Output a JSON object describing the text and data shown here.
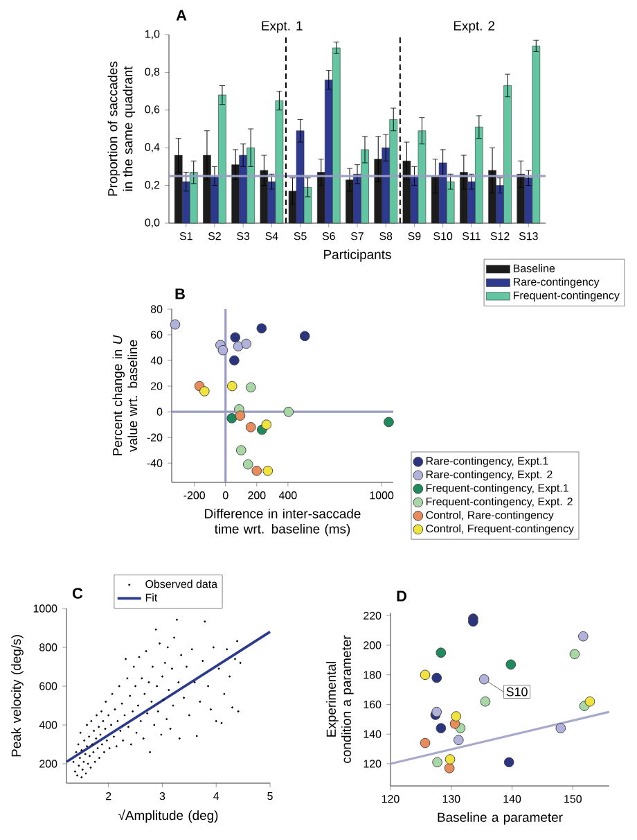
{
  "chart_data": [
    {
      "type": "bar",
      "title": "A",
      "xlabel": "Participants",
      "ylabel": "Proportion of saccades in the same quadrant",
      "categories": [
        "S1",
        "S2",
        "S3",
        "S4",
        "S5",
        "S6",
        "S7",
        "S8",
        "S9",
        "S10",
        "S11",
        "S12",
        "S13"
      ],
      "series": [
        {
          "name": "Baseline",
          "color": "#1c1c1c",
          "values": [
            0.36,
            0.36,
            0.31,
            0.28,
            0.17,
            0.27,
            0.23,
            0.34,
            0.33,
            0.25,
            0.27,
            0.28,
            0.26
          ],
          "errors": [
            0.09,
            0.13,
            0.08,
            0.08,
            0.07,
            0.07,
            0.06,
            0.12,
            0.1,
            0.09,
            0.09,
            0.12,
            0.07
          ]
        },
        {
          "name": "Rare-contingency",
          "color": "#2d3a8f",
          "values": [
            0.22,
            0.25,
            0.36,
            0.22,
            0.49,
            0.76,
            0.26,
            0.4,
            0.25,
            0.32,
            0.22,
            0.2,
            0.24
          ],
          "errors": [
            0.05,
            0.05,
            0.06,
            0.04,
            0.06,
            0.05,
            0.05,
            0.07,
            0.05,
            0.07,
            0.04,
            0.04,
            0.04
          ]
        },
        {
          "name": "Frequent-contingency",
          "color": "#62c6a2",
          "values": [
            0.27,
            0.68,
            0.4,
            0.65,
            0.19,
            0.93,
            0.39,
            0.55,
            0.49,
            0.22,
            0.51,
            0.73,
            0.94
          ],
          "errors": [
            0.06,
            0.05,
            0.1,
            0.05,
            0.05,
            0.03,
            0.07,
            0.06,
            0.07,
            0.04,
            0.06,
            0.06,
            0.03
          ]
        }
      ],
      "ylim": [
        0,
        1
      ],
      "yticks": [
        {
          "value": 0,
          "label": "0,0"
        },
        {
          "value": 0.2,
          "label": "0,2"
        },
        {
          "value": 0.4,
          "label": "0,4"
        },
        {
          "value": 0.6,
          "label": "0,6"
        },
        {
          "value": 0.8,
          "label": "0,8"
        },
        {
          "value": 1,
          "label": "1,0"
        }
      ],
      "ref_lines": [
        {
          "axis": "y",
          "value": 0.25,
          "color": "#9a9cc4"
        }
      ],
      "annotations": [
        "Expt. 1",
        "Expt. 2"
      ],
      "legend": "bottom right"
    },
    {
      "type": "scatter",
      "title": "B",
      "xlabel": "Difference in inter-saccade time wrt. baseline (ms)",
      "ylabel": "Percent change in *U* value wrt. baseline",
      "marker": "circle",
      "series": [
        {
          "name": "Rare-contingency, Expt.1",
          "color": "#2b357f",
          "x": [
            62,
            56,
            231,
            508
          ],
          "values": [
            58,
            40,
            65,
            59
          ]
        },
        {
          "name": "Rare-contingency, Expt. 2",
          "color": "#b0b2dc",
          "x": [
            -323,
            -33,
            -17,
            81,
            133
          ],
          "values": [
            68,
            52,
            48,
            51,
            53
          ]
        },
        {
          "name": "Frequent-contingency, Expt.1",
          "color": "#1f8a5c",
          "x": [
            40,
            233,
            1046
          ],
          "values": [
            -5,
            -14,
            -8
          ]
        },
        {
          "name": "Frequent-contingency, Expt. 2",
          "color": "#a8d7a5",
          "x": [
            87,
            162,
            100,
            144,
            404
          ],
          "values": [
            2,
            19,
            -30,
            -41,
            0
          ]
        },
        {
          "name": "Control, Rare-contingency",
          "color": "#e98c5c",
          "x": [
            -167,
            94,
            162,
            200
          ],
          "values": [
            20,
            -3,
            -12,
            -46
          ]
        },
        {
          "name": "Control, Frequent-contingency",
          "color": "#f0e43c",
          "x": [
            -135,
            42,
            262,
            271
          ],
          "values": [
            16,
            20,
            -10,
            -46
          ]
        }
      ],
      "xlim": [
        -345,
        1075
      ],
      "xticks": [
        -200,
        0,
        200,
        400,
        1000
      ],
      "ylim": [
        -55,
        80
      ],
      "yticks": [
        -40,
        -20,
        0,
        20,
        40,
        60,
        80
      ],
      "ref_lines": [
        {
          "axis": "x",
          "value": 0,
          "color": "#9a9cc4"
        },
        {
          "axis": "y",
          "value": 0,
          "color": "#9a9cc4"
        }
      ],
      "legend": "bottom right"
    },
    {
      "type": "scatter",
      "title": "C",
      "xlabel": "√Amplitude (deg)",
      "ylabel": "Peak velocity (deg/s)",
      "marker": "circle",
      "series": [
        {
          "name": "Observed data",
          "color": "#000000",
          "x": [
            1.35,
            1.38,
            1.4,
            1.42,
            1.44,
            1.45,
            1.47,
            1.48,
            1.5,
            1.5,
            1.52,
            1.54,
            1.55,
            1.57,
            1.58,
            1.6,
            1.6,
            1.62,
            1.64,
            1.65,
            1.67,
            1.68,
            1.7,
            1.72,
            1.73,
            1.75,
            1.77,
            1.78,
            1.8,
            1.82,
            1.83,
            1.85,
            1.87,
            1.88,
            1.9,
            1.92,
            1.94,
            1.95,
            1.97,
            2.0,
            2.02,
            2.05,
            2.07,
            2.1,
            2.12,
            2.15,
            2.17,
            2.2,
            2.22,
            2.25,
            2.27,
            2.3,
            2.32,
            2.35,
            2.37,
            2.4,
            2.42,
            2.45,
            2.47,
            2.5,
            2.52,
            2.55,
            2.57,
            2.6,
            2.62,
            2.65,
            2.67,
            2.7,
            2.72,
            2.75,
            2.77,
            2.8,
            2.82,
            2.85,
            2.88,
            2.9,
            2.92,
            2.95,
            2.98,
            3.0,
            3.02,
            3.05,
            3.08,
            3.1,
            3.12,
            3.15,
            3.18,
            3.2,
            3.22,
            3.27,
            3.3,
            3.32,
            3.35,
            3.4,
            3.45,
            3.5,
            3.55,
            3.6,
            3.64,
            3.7,
            3.75,
            3.79,
            3.85,
            3.9,
            3.95,
            4.0,
            4.05,
            4.1,
            4.15,
            4.2,
            4.25,
            4.3,
            4.35,
            4.39,
            4.41,
            4.45
          ],
          "values": [
            210,
            160,
            260,
            140,
            300,
            190,
            230,
            360,
            130,
            270,
            170,
            210,
            320,
            250,
            150,
            400,
            290,
            200,
            340,
            240,
            180,
            420,
            300,
            260,
            370,
            210,
            330,
            450,
            280,
            390,
            230,
            350,
            470,
            300,
            420,
            260,
            380,
            520,
            320,
            450,
            280,
            400,
            560,
            340,
            480,
            290,
            420,
            600,
            370,
            510,
            320,
            450,
            740,
            640,
            390,
            550,
            300,
            470,
            700,
            600,
            360,
            500,
            750,
            420,
            640,
            330,
            560,
            780,
            460,
            620,
            260,
            520,
            700,
            400,
            892,
            600,
            470,
            820,
            350,
            650,
            530,
            720,
            430,
            800,
            580,
            380,
            690,
            500,
            850,
            942,
            620,
            330,
            760,
            540,
            700,
            450,
            790,
            620,
            343,
            520,
            730,
            933,
            600,
            480,
            800,
            420,
            690,
            410,
            560,
            790,
            650,
            490,
            740,
            832,
            470,
            720
          ]
        },
        {
          "name": "Fit",
          "type": "line",
          "marker": "none",
          "color": "#2b3a8c",
          "x": [
            1.22,
            5
          ],
          "values": [
            210,
            880
          ]
        }
      ],
      "xlim": [
        1.22,
        5
      ],
      "xticks": [
        2,
        3,
        4,
        5
      ],
      "ylim": [
        100,
        1000
      ],
      "yticks": [
        200,
        400,
        600,
        800,
        1000
      ],
      "legend": "top"
    },
    {
      "type": "scatter",
      "title": "D",
      "xlabel": "Baseline a parameter",
      "ylabel": "Experimental condition a parameter",
      "marker": "circle",
      "series": [
        {
          "type": "line",
          "marker": "none",
          "color": "#a8aacb",
          "x": [
            120,
            156
          ],
          "values": [
            120,
            155
          ]
        },
        {
          "color": "#2b357f",
          "x": [
            133.6,
            133.6,
            127.6,
            127.4,
            128.3,
            139.5
          ],
          "values": [
            218,
            216,
            178,
            153,
            144,
            121
          ]
        },
        {
          "color": "#b0b2dc",
          "x": [
            127.6,
            135.4,
            131.2,
            148.0,
            151.7
          ],
          "values": [
            155,
            177,
            136,
            144,
            206
          ]
        },
        {
          "color": "#1f8a5c",
          "x": [
            128.3,
            139.8
          ],
          "values": [
            195,
            187
          ]
        },
        {
          "color": "#a8d7a5",
          "x": [
            135.6,
            150.3,
            151.9,
            127.7,
            131.5
          ],
          "values": [
            162,
            194,
            159,
            121,
            144
          ]
        },
        {
          "color": "#e98c5c",
          "x": [
            125.7,
            130.6,
            129.7
          ],
          "values": [
            134,
            147,
            117
          ]
        },
        {
          "color": "#f0e43c",
          "x": [
            125.7,
            130.8,
            129.8,
            152.8
          ],
          "values": [
            180,
            152,
            123,
            162
          ]
        }
      ],
      "xlim": [
        120,
        156
      ],
      "xticks": [
        120,
        130,
        140,
        150
      ],
      "ylim": [
        105,
        222
      ],
      "yticks": [
        120,
        140,
        160,
        180,
        200,
        220
      ],
      "annotations": [
        {
          "text": "S10",
          "x": 135.4,
          "y": 177
        }
      ]
    }
  ]
}
